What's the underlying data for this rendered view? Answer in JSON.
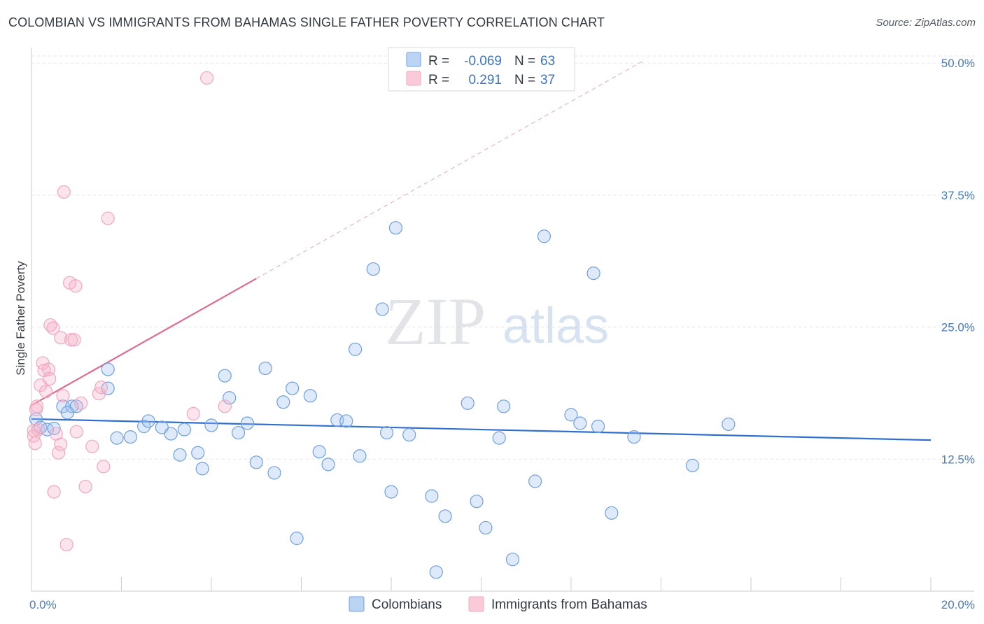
{
  "header": {
    "title": "COLOMBIAN VS IMMIGRANTS FROM BAHAMAS SINGLE FATHER POVERTY CORRELATION CHART",
    "source": "Source: ZipAtlas.com"
  },
  "watermark": {
    "zip": "ZIP",
    "atlas": "atlas"
  },
  "chart_data": {
    "type": "scatter",
    "title": "COLOMBIAN VS IMMIGRANTS FROM BAHAMAS SINGLE FATHER POVERTY CORRELATION CHART",
    "ylabel": "Single Father Poverty",
    "xlabel": "",
    "xlim": [
      0,
      20
    ],
    "ylim": [
      0,
      52
    ],
    "x_tick_labels": [
      {
        "value": 0,
        "label": "0.0%"
      },
      {
        "value": 20,
        "label": "20.0%"
      }
    ],
    "y_tick_labels": [
      {
        "value": 12.5,
        "label": "12.5%"
      },
      {
        "value": 25,
        "label": "25.0%"
      },
      {
        "value": 37.5,
        "label": "37.5%"
      },
      {
        "value": 50,
        "label": "50.0%"
      }
    ],
    "grid": true,
    "legend_position": "top-center",
    "series": [
      {
        "name": "Colombians",
        "color": "#6f9fe0",
        "line_color": "#2f6fd0",
        "r_label": "R =",
        "r_value": "-0.069",
        "n_label": "N =",
        "n_value": "63",
        "trend": {
          "x0": 0,
          "y0": 16.3,
          "x1": 20,
          "y1": 14.3
        },
        "points": [
          [
            0.1,
            16.3
          ],
          [
            0.2,
            15.5
          ],
          [
            0.35,
            15.3
          ],
          [
            0.7,
            17.5
          ],
          [
            0.9,
            17.5
          ],
          [
            1.0,
            17.5
          ],
          [
            0.8,
            16.9
          ],
          [
            1.7,
            21.0
          ],
          [
            1.7,
            19.2
          ],
          [
            1.9,
            14.5
          ],
          [
            2.2,
            14.6
          ],
          [
            2.5,
            15.6
          ],
          [
            2.6,
            16.1
          ],
          [
            2.9,
            15.5
          ],
          [
            3.1,
            14.9
          ],
          [
            3.3,
            12.9
          ],
          [
            3.4,
            15.3
          ],
          [
            3.7,
            13.1
          ],
          [
            3.8,
            11.6
          ],
          [
            4.0,
            15.7
          ],
          [
            4.3,
            20.4
          ],
          [
            4.4,
            18.3
          ],
          [
            4.6,
            15.0
          ],
          [
            4.8,
            15.9
          ],
          [
            5.0,
            12.2
          ],
          [
            5.2,
            21.1
          ],
          [
            5.4,
            11.2
          ],
          [
            5.6,
            17.9
          ],
          [
            5.8,
            19.2
          ],
          [
            5.9,
            5.0
          ],
          [
            6.2,
            18.5
          ],
          [
            6.4,
            13.2
          ],
          [
            6.6,
            12.0
          ],
          [
            6.8,
            16.2
          ],
          [
            7.0,
            16.1
          ],
          [
            7.2,
            22.9
          ],
          [
            7.3,
            12.8
          ],
          [
            7.6,
            30.5
          ],
          [
            7.8,
            26.7
          ],
          [
            7.9,
            15.0
          ],
          [
            8.0,
            9.4
          ],
          [
            8.1,
            34.4
          ],
          [
            8.4,
            14.8
          ],
          [
            8.9,
            9.0
          ],
          [
            9.0,
            1.8
          ],
          [
            9.2,
            7.1
          ],
          [
            9.7,
            17.8
          ],
          [
            9.9,
            8.5
          ],
          [
            10.1,
            6.0
          ],
          [
            10.4,
            14.5
          ],
          [
            10.5,
            17.5
          ],
          [
            10.7,
            3.0
          ],
          [
            11.2,
            10.4
          ],
          [
            11.4,
            33.6
          ],
          [
            12.0,
            16.7
          ],
          [
            12.2,
            15.9
          ],
          [
            12.5,
            30.1
          ],
          [
            12.6,
            15.6
          ],
          [
            12.9,
            7.4
          ],
          [
            13.4,
            14.6
          ],
          [
            14.7,
            11.9
          ],
          [
            15.5,
            15.8
          ],
          [
            0.5,
            15.4
          ]
        ]
      },
      {
        "name": "Immigrants from Bahamas",
        "color": "#f2a7c0",
        "line_color": "#e06a92",
        "r_label": "R =",
        "r_value": "0.291",
        "n_label": "N =",
        "n_value": "37",
        "trend": {
          "x0": 0,
          "y0": 17.6,
          "x1": 5.0,
          "y1": 29.6
        },
        "trend_extension": {
          "x0": 5.0,
          "y0": 29.6,
          "x1": 13.6,
          "y1": 50.2
        },
        "points": [
          [
            0.05,
            15.2
          ],
          [
            0.05,
            14.7
          ],
          [
            0.08,
            14.0
          ],
          [
            0.1,
            17.2
          ],
          [
            0.12,
            17.5
          ],
          [
            0.15,
            15.3
          ],
          [
            0.2,
            19.5
          ],
          [
            0.25,
            21.6
          ],
          [
            0.28,
            20.9
          ],
          [
            0.32,
            18.9
          ],
          [
            0.38,
            21.0
          ],
          [
            0.4,
            20.1
          ],
          [
            0.42,
            25.2
          ],
          [
            0.48,
            24.9
          ],
          [
            0.5,
            9.4
          ],
          [
            0.55,
            14.9
          ],
          [
            0.6,
            13.1
          ],
          [
            0.65,
            24.0
          ],
          [
            0.65,
            13.9
          ],
          [
            0.7,
            18.5
          ],
          [
            0.72,
            37.8
          ],
          [
            0.78,
            4.4
          ],
          [
            0.85,
            29.2
          ],
          [
            0.88,
            23.8
          ],
          [
            0.95,
            23.8
          ],
          [
            0.98,
            28.9
          ],
          [
            1.0,
            15.1
          ],
          [
            1.1,
            17.8
          ],
          [
            1.2,
            9.9
          ],
          [
            1.35,
            13.7
          ],
          [
            1.5,
            18.7
          ],
          [
            1.55,
            19.3
          ],
          [
            1.6,
            11.8
          ],
          [
            1.7,
            35.3
          ],
          [
            3.6,
            16.8
          ],
          [
            3.9,
            48.6
          ],
          [
            4.3,
            17.5
          ]
        ]
      }
    ]
  }
}
